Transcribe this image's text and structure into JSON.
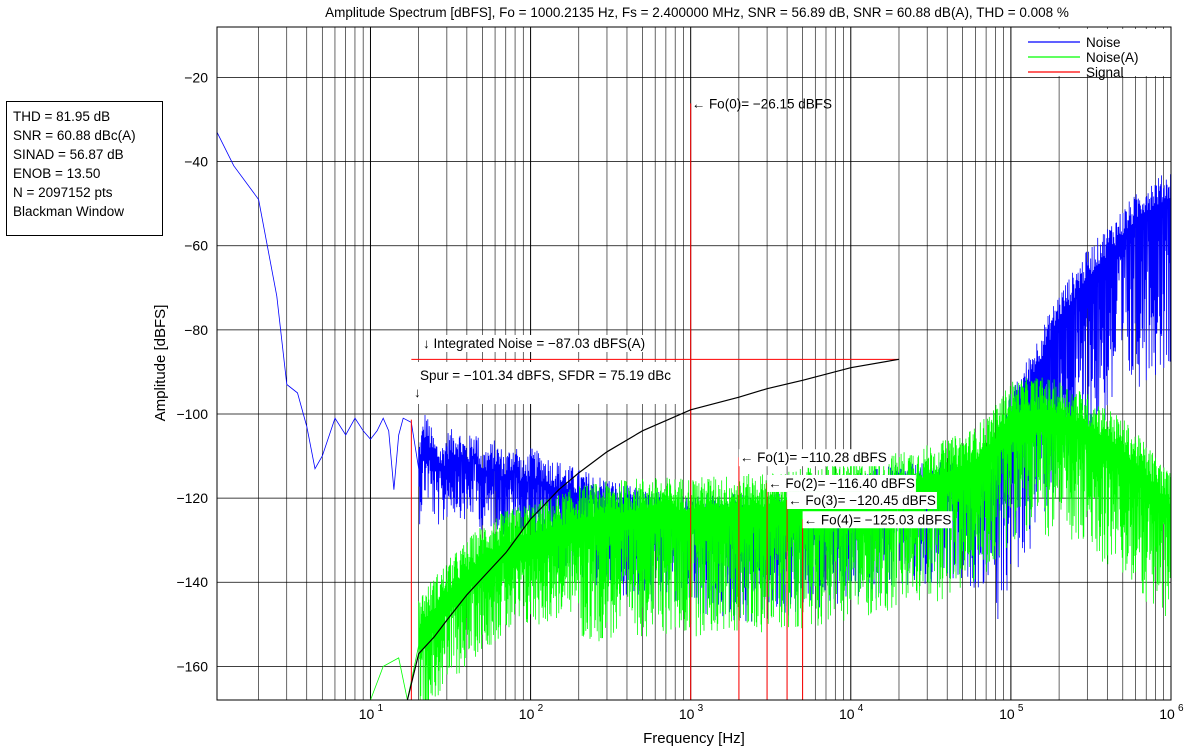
{
  "chart_data": {
    "type": "line",
    "title": "Amplitude Spectrum [dBFS], Fo = 1000.2135 Hz, Fs = 2.400000 MHz, SNR = 56.89 dB, SNR = 60.88 dB(A), THD = 0.008 %",
    "xlabel": "Frequency [Hz]",
    "ylabel": "Amplitude [dBFS]",
    "x_scale": "log",
    "xlim": [
      1.1,
      1000000
    ],
    "ylim": [
      -168,
      -8
    ],
    "grid": true,
    "legend_position": "top-right",
    "x_ticks": [
      {
        "base": "10",
        "exp": "1",
        "value": 10
      },
      {
        "base": "10",
        "exp": "2",
        "value": 100
      },
      {
        "base": "10",
        "exp": "3",
        "value": 1000
      },
      {
        "base": "10",
        "exp": "4",
        "value": 10000
      },
      {
        "base": "10",
        "exp": "5",
        "value": 100000
      },
      {
        "base": "10",
        "exp": "6",
        "value": 1000000
      }
    ],
    "y_ticks": [
      "−20",
      "−40",
      "−60",
      "−80",
      "−100",
      "−120",
      "−140",
      "−160"
    ],
    "y_tick_values": [
      -20,
      -40,
      -60,
      -80,
      -100,
      -120,
      -140,
      -160
    ],
    "series": [
      {
        "name": "Noise",
        "color": "#0000ff",
        "points": [
          [
            1.1,
            -33
          ],
          [
            1.4,
            -41
          ],
          [
            2,
            -49
          ],
          [
            2.6,
            -72
          ],
          [
            3,
            -93
          ],
          [
            3.5,
            -95
          ],
          [
            4,
            -103
          ],
          [
            4.5,
            -113
          ],
          [
            5,
            -110
          ],
          [
            6,
            -101
          ],
          [
            7,
            -105
          ],
          [
            8,
            -101
          ],
          [
            9,
            -104
          ],
          [
            10,
            -106
          ],
          [
            11,
            -104
          ],
          [
            12,
            -101
          ],
          [
            13,
            -104
          ],
          [
            14,
            -118
          ],
          [
            15,
            -105
          ],
          [
            16,
            -101
          ],
          [
            18,
            -102
          ],
          [
            20,
            -113
          ],
          [
            22,
            -106
          ],
          [
            25,
            -112
          ],
          [
            28,
            -114
          ],
          [
            30,
            -111
          ],
          [
            35,
            -110
          ],
          [
            40,
            -113
          ],
          [
            45,
            -110
          ],
          [
            50,
            -115
          ],
          [
            60,
            -113
          ],
          [
            70,
            -116
          ],
          [
            80,
            -113
          ],
          [
            90,
            -118
          ],
          [
            100,
            -115
          ],
          [
            150,
            -118
          ],
          [
            200,
            -120
          ],
          [
            300,
            -122
          ],
          [
            500,
            -125
          ],
          [
            1000,
            -126
          ],
          [
            3000,
            -126
          ],
          [
            5000,
            -124
          ],
          [
            10000,
            -121
          ],
          [
            20000,
            -119
          ],
          [
            50000,
            -118
          ],
          [
            70000,
            -117
          ],
          [
            80000,
            -112
          ],
          [
            100000,
            -102
          ],
          [
            150000,
            -88
          ],
          [
            200000,
            -78
          ],
          [
            300000,
            -68
          ],
          [
            500000,
            -58
          ],
          [
            700000,
            -52
          ],
          [
            1000000,
            -49
          ]
        ]
      },
      {
        "name": "Noise(A)",
        "color": "#00ff00",
        "points": [
          [
            10,
            -170
          ],
          [
            12,
            -160
          ],
          [
            15,
            -158
          ],
          [
            17,
            -170
          ],
          [
            20,
            -155
          ],
          [
            30,
            -147
          ],
          [
            40,
            -142
          ],
          [
            50,
            -138
          ],
          [
            70,
            -135
          ],
          [
            100,
            -133
          ],
          [
            150,
            -131
          ],
          [
            200,
            -129
          ],
          [
            300,
            -128
          ],
          [
            500,
            -127
          ],
          [
            1000,
            -127
          ],
          [
            3000,
            -126
          ],
          [
            5000,
            -125
          ],
          [
            10000,
            -123
          ],
          [
            20000,
            -121
          ],
          [
            40000,
            -118
          ],
          [
            60000,
            -115
          ],
          [
            80000,
            -110
          ],
          [
            100000,
            -104
          ],
          [
            150000,
            -103
          ],
          [
            200000,
            -104
          ],
          [
            300000,
            -107
          ],
          [
            500000,
            -113
          ],
          [
            700000,
            -119
          ],
          [
            1000000,
            -126
          ]
        ]
      },
      {
        "name": "Integrated Noise",
        "color": "#000000",
        "points": [
          [
            17,
            -170
          ],
          [
            20,
            -157
          ],
          [
            25,
            -153
          ],
          [
            30,
            -149
          ],
          [
            40,
            -143
          ],
          [
            50,
            -139
          ],
          [
            70,
            -133
          ],
          [
            100,
            -125
          ],
          [
            150,
            -118
          ],
          [
            200,
            -114
          ],
          [
            300,
            -109
          ],
          [
            500,
            -104
          ],
          [
            1000,
            -99
          ],
          [
            2000,
            -96
          ],
          [
            3000,
            -94
          ],
          [
            5000,
            -92
          ],
          [
            10000,
            -89
          ],
          [
            20000,
            -87
          ]
        ]
      }
    ],
    "signal_lines": [
      {
        "freq": 1000.2,
        "top": -26.15
      },
      {
        "freq": 2000.4,
        "top": -110.28
      },
      {
        "freq": 3000.6,
        "top": -116.4
      },
      {
        "freq": 4000.8,
        "top": -120.45
      },
      {
        "freq": 5001.1,
        "top": -125.03
      },
      {
        "freq": 18,
        "top": -101.34
      }
    ],
    "integrated_level": {
      "value": -87.03,
      "from": 18,
      "to": 20000
    },
    "annotations": [
      {
        "text": "← Fo(0)= −26.15 dBFS",
        "x": 1000.2,
        "y": -26.15,
        "box": false
      },
      {
        "text": "← Fo(1)= −110.28 dBFS",
        "x": 2000.4,
        "y": -110.28,
        "box": true
      },
      {
        "text": "← Fo(2)= −116.40 dBFS",
        "x": 3000.6,
        "y": -116.4,
        "box": true
      },
      {
        "text": "← Fo(3)= −120.45 dBFS",
        "x": 4000.8,
        "y": -120.45,
        "box": true
      },
      {
        "text": "← Fo(4)= −125.03 dBFS",
        "x": 5001.1,
        "y": -125.03,
        "box": true
      }
    ],
    "integrated_label": "↓ Integrated Noise = −87.03 dBFS(A)",
    "spur_label": "Spur = −101.34 dBFS, SFDR = 75.19 dBc",
    "spur_arrow": "↓",
    "legend": [
      {
        "label": "Noise",
        "color": "#0000ff"
      },
      {
        "label": "Noise(A)",
        "color": "#00ff00"
      },
      {
        "label": "Signal",
        "color": "#ff0000"
      }
    ]
  },
  "stats": [
    "THD = 81.95 dB",
    "SNR = 60.88 dBc(A)",
    "SINAD = 56.87 dB",
    "ENOB = 13.50",
    "N = 2097152 pts",
    "Blackman Window"
  ]
}
